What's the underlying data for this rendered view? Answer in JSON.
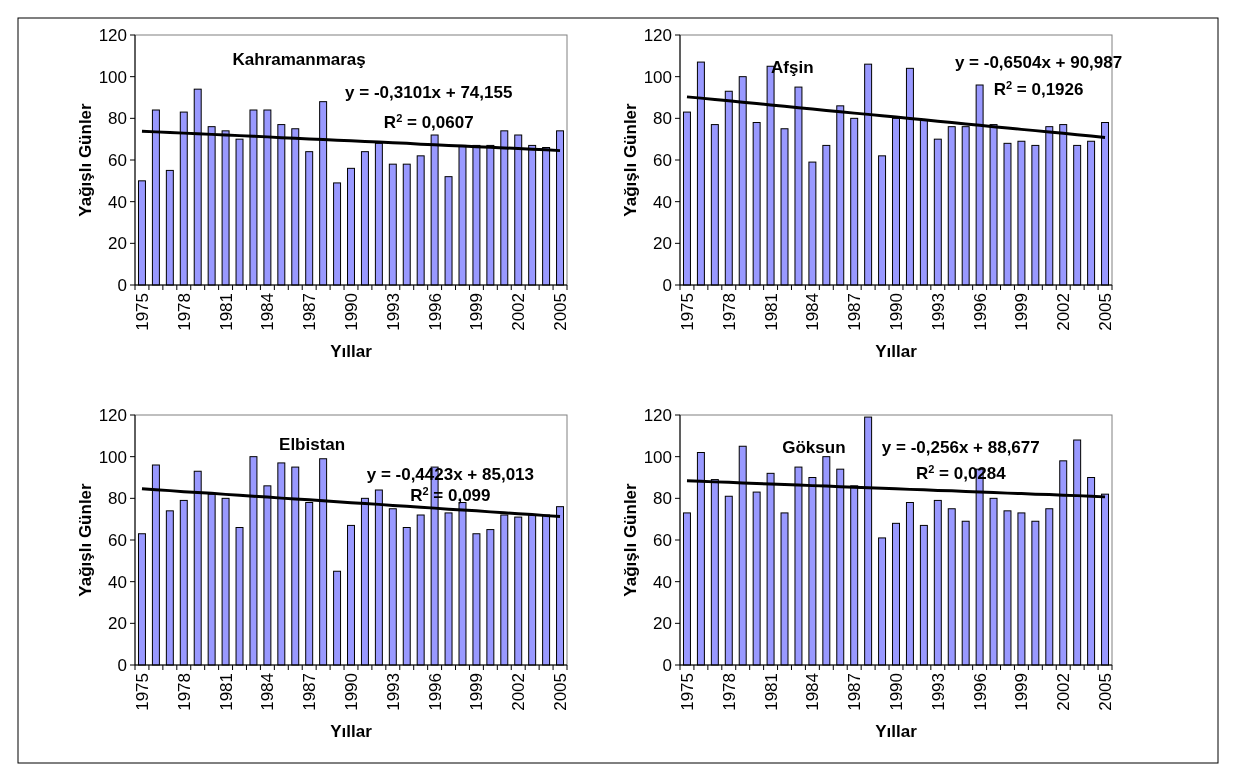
{
  "chart_data": [
    {
      "type": "bar",
      "title": "Kahramanmaraş",
      "xlabel": "Yıllar",
      "ylabel": "Yağışlı Günler",
      "categories": [
        "1975",
        null,
        null,
        "1978",
        null,
        null,
        "1981",
        null,
        null,
        "1984",
        null,
        null,
        "1987",
        null,
        null,
        "1990",
        null,
        null,
        "1993",
        null,
        null,
        "1996",
        null,
        null,
        "1999",
        null,
        null,
        "2002",
        null,
        null,
        "2005"
      ],
      "ylim": [
        0,
        120
      ],
      "yticks": [
        0,
        20,
        40,
        60,
        80,
        100,
        120
      ],
      "grid": false,
      "annotations": [
        "y = -0,3101x + 74,155",
        "R$^{2}$ = 0,0607"
      ],
      "series": [
        {
          "color": "#9999ff",
          "values": [
            50,
            84,
            55,
            83,
            94,
            76,
            74,
            70,
            84,
            84,
            77,
            75,
            64,
            88,
            49,
            56,
            64,
            68,
            58,
            58,
            62,
            72,
            52,
            67,
            67,
            67,
            74,
            72,
            67,
            66,
            74
          ]
        },
        {
          "type": "line",
          "color": "#000000",
          "values": [
            73.8,
            73.5,
            73.2,
            72.9,
            72.6,
            72.3,
            72.0,
            71.7,
            71.4,
            71.1,
            70.7,
            70.4,
            70.1,
            69.8,
            69.5,
            69.2,
            68.9,
            68.6,
            68.3,
            68.0,
            67.6,
            67.3,
            67.0,
            66.7,
            66.4,
            66.1,
            65.8,
            65.5,
            65.2,
            64.9,
            64.5
          ]
        }
      ]
    },
    {
      "type": "bar",
      "title": "Afşin",
      "xlabel": "Yıllar",
      "ylabel": "Yağışlı Günler",
      "categories": [
        "1975",
        null,
        null,
        "1978",
        null,
        null,
        "1981",
        null,
        null,
        "1984",
        null,
        null,
        "1987",
        null,
        null,
        "1990",
        null,
        null,
        "1993",
        null,
        null,
        "1996",
        null,
        null,
        "1999",
        null,
        null,
        "2002",
        null,
        null,
        "2005"
      ],
      "ylim": [
        0,
        120
      ],
      "yticks": [
        0,
        20,
        40,
        60,
        80,
        100,
        120
      ],
      "grid": false,
      "annotations": [
        "y = -0,6504x + 90,987",
        "R$^{2}$ = 0,1926"
      ],
      "series": [
        {
          "color": "#9999ff",
          "values": [
            83,
            107,
            77,
            93,
            100,
            78,
            105,
            75,
            95,
            59,
            67,
            86,
            80,
            106,
            62,
            80,
            104,
            79,
            70,
            76,
            76,
            96,
            77,
            68,
            69,
            67,
            76,
            77,
            67,
            69,
            78
          ]
        },
        {
          "type": "line",
          "color": "#000000",
          "values": [
            90.3,
            89.7,
            89.0,
            88.4,
            87.7,
            87.1,
            86.4,
            85.8,
            85.1,
            84.5,
            83.8,
            83.2,
            82.5,
            81.9,
            81.2,
            80.6,
            79.9,
            79.3,
            78.6,
            78.0,
            77.3,
            76.7,
            76.0,
            75.4,
            74.7,
            74.1,
            73.4,
            72.8,
            72.1,
            71.5,
            70.8
          ]
        }
      ]
    },
    {
      "type": "bar",
      "title": "Elbistan",
      "xlabel": "Yıllar",
      "ylabel": "Yağışlı Günler",
      "categories": [
        "1975",
        null,
        null,
        "1978",
        null,
        null,
        "1981",
        null,
        null,
        "1984",
        null,
        null,
        "1987",
        null,
        null,
        "1990",
        null,
        null,
        "1993",
        null,
        null,
        "1996",
        null,
        null,
        "1999",
        null,
        null,
        "2002",
        null,
        null,
        "2005"
      ],
      "ylim": [
        0,
        120
      ],
      "yticks": [
        0,
        20,
        40,
        60,
        80,
        100,
        120
      ],
      "grid": false,
      "annotations": [
        "y = -0,4423x + 85,013",
        "R$^{2}$ = 0,099"
      ],
      "series": [
        {
          "color": "#9999ff",
          "values": [
            63,
            96,
            74,
            79,
            93,
            82,
            80,
            66,
            100,
            86,
            97,
            95,
            78,
            99,
            45,
            67,
            80,
            84,
            75,
            66,
            72,
            95,
            73,
            78,
            63,
            65,
            72,
            71,
            72,
            72,
            76
          ]
        },
        {
          "type": "line",
          "color": "#000000",
          "values": [
            84.6,
            84.1,
            83.7,
            83.2,
            82.8,
            82.4,
            81.9,
            81.5,
            81.0,
            80.6,
            80.1,
            79.7,
            79.3,
            78.8,
            78.4,
            77.9,
            77.5,
            77.1,
            76.6,
            76.2,
            75.7,
            75.3,
            74.8,
            74.4,
            74.0,
            73.5,
            73.1,
            72.6,
            72.2,
            71.7,
            71.3
          ]
        }
      ]
    },
    {
      "type": "bar",
      "title": "Göksun",
      "xlabel": "Yıllar",
      "ylabel": "Yağışlı Günler",
      "categories": [
        "1975",
        null,
        null,
        "1978",
        null,
        null,
        "1981",
        null,
        null,
        "1984",
        null,
        null,
        "1987",
        null,
        null,
        "1990",
        null,
        null,
        "1993",
        null,
        null,
        "1996",
        null,
        null,
        "1999",
        null,
        null,
        "2002",
        null,
        null,
        "2005"
      ],
      "ylim": [
        0,
        120
      ],
      "yticks": [
        0,
        20,
        40,
        60,
        80,
        100,
        120
      ],
      "grid": false,
      "annotations": [
        "y = -0,256x + 88,677",
        "R$^{2}$ = 0,0284"
      ],
      "series": [
        {
          "color": "#9999ff",
          "values": [
            73,
            102,
            89,
            81,
            105,
            83,
            92,
            73,
            95,
            90,
            100,
            94,
            86,
            119,
            61,
            68,
            78,
            67,
            79,
            75,
            69,
            94,
            80,
            74,
            73,
            69,
            75,
            98,
            108,
            90,
            82
          ]
        },
        {
          "type": "line",
          "color": "#000000",
          "values": [
            88.4,
            88.2,
            87.9,
            87.7,
            87.4,
            87.1,
            86.9,
            86.6,
            86.4,
            86.1,
            85.9,
            85.6,
            85.3,
            85.1,
            84.8,
            84.6,
            84.3,
            84.1,
            83.8,
            83.6,
            83.3,
            83.0,
            82.8,
            82.5,
            82.3,
            82.0,
            81.8,
            81.5,
            81.3,
            81.0,
            80.7
          ]
        }
      ]
    }
  ]
}
